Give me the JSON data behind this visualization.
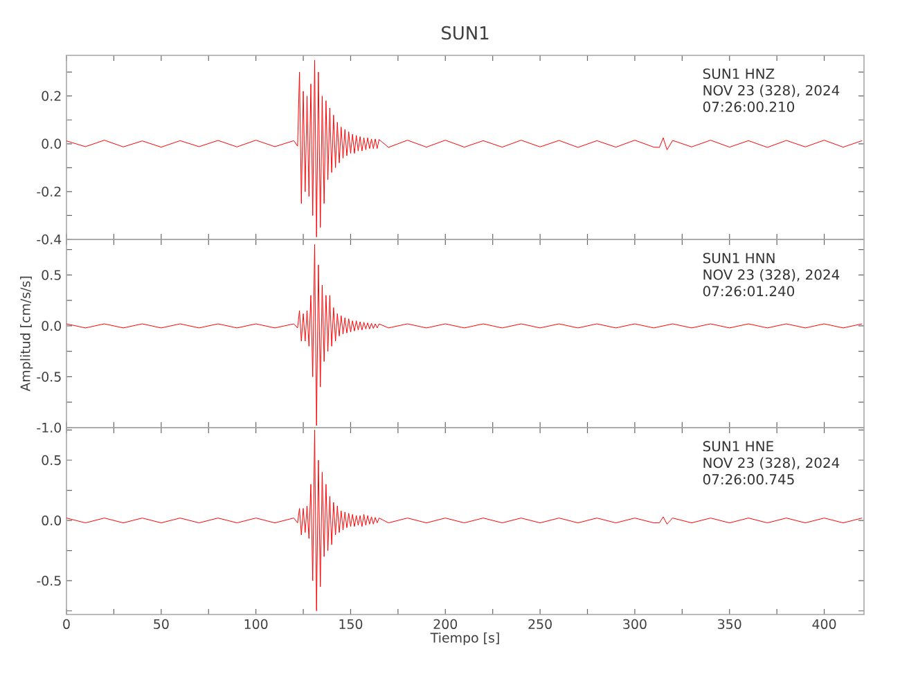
{
  "chart_data": [
    {
      "type": "line",
      "title": "SUN1",
      "annotations": [
        "SUN1   HNZ",
        "NOV 23 (328), 2024",
        "07:26:00.210"
      ],
      "tick_labels": "y",
      "xlim": [
        0,
        421
      ],
      "ylim": [
        -0.4,
        0.37
      ],
      "xticks": [
        0,
        {
          "value": 25,
          "label": null
        },
        50,
        {
          "value": 75,
          "label": null
        },
        100,
        {
          "value": 125,
          "label": null
        },
        150,
        {
          "value": 175,
          "label": null
        },
        200,
        {
          "value": 225,
          "label": null
        },
        250,
        {
          "value": 275,
          "label": null
        },
        300,
        {
          "value": 325,
          "label": null
        },
        350,
        {
          "value": 375,
          "label": null
        },
        400
      ],
      "yticks": [
        -0.4,
        {
          "value": -0.3,
          "label": null
        },
        -0.2,
        {
          "value": -0.1,
          "label": null
        },
        {
          "value": 0,
          "label": "0.0"
        },
        {
          "value": 0.1,
          "label": null
        },
        0.2,
        {
          "value": 0.3,
          "label": null
        }
      ],
      "series": [
        {
          "color": "#ff0000",
          "x": [
            0,
            10,
            20,
            30,
            40,
            50,
            60,
            70,
            80,
            90,
            100,
            110,
            120,
            122,
            123,
            124,
            125,
            126,
            127,
            128,
            129,
            130,
            131,
            132,
            133,
            134,
            135,
            136,
            137,
            138,
            139,
            140,
            141,
            142,
            143,
            144,
            145,
            146,
            147,
            148,
            149,
            150,
            151,
            152,
            153,
            154,
            155,
            156,
            157,
            158,
            159,
            160,
            161,
            162,
            163,
            164,
            165,
            170,
            180,
            190,
            200,
            210,
            220,
            230,
            240,
            250,
            260,
            270,
            280,
            290,
            300,
            310,
            313,
            315,
            317,
            320,
            330,
            340,
            350,
            360,
            370,
            380,
            390,
            400,
            410,
            420
          ],
          "values": [
            0.012,
            -0.012,
            0.015,
            -0.013,
            0.012,
            -0.014,
            0.013,
            -0.012,
            0.014,
            -0.013,
            0.015,
            -0.012,
            0.013,
            -0.01,
            0.3,
            -0.25,
            0.22,
            -0.2,
            0.2,
            -0.22,
            0.25,
            -0.3,
            0.35,
            -0.39,
            0.3,
            -0.35,
            0.2,
            -0.25,
            0.18,
            -0.15,
            0.15,
            -0.12,
            0.12,
            -0.1,
            0.09,
            -0.08,
            0.07,
            -0.06,
            0.06,
            -0.05,
            0.05,
            -0.04,
            0.04,
            -0.04,
            0.035,
            -0.03,
            0.03,
            -0.03,
            0.025,
            -0.025,
            0.025,
            -0.02,
            0.02,
            -0.02,
            0.02,
            -0.02,
            0.018,
            -0.015,
            0.015,
            -0.014,
            0.015,
            -0.014,
            0.013,
            -0.014,
            0.015,
            -0.013,
            0.014,
            -0.015,
            0.013,
            -0.014,
            0.015,
            -0.014,
            -0.015,
            0.025,
            -0.025,
            0.014,
            -0.013,
            0.015,
            -0.014,
            0.013,
            -0.015,
            0.014,
            -0.013,
            0.015,
            -0.014,
            0.013
          ]
        }
      ]
    },
    {
      "type": "line",
      "ylabel": "Amplitud [cm/s/s]",
      "annotations": [
        "SUN1   HNN",
        "NOV 23 (328), 2024",
        "07:26:01.240"
      ],
      "tick_labels": "y",
      "xlim": [
        0,
        421
      ],
      "ylim": [
        -1.0,
        0.85
      ],
      "xticks": [
        0,
        {
          "value": 25,
          "label": null
        },
        50,
        {
          "value": 75,
          "label": null
        },
        100,
        {
          "value": 125,
          "label": null
        },
        150,
        {
          "value": 175,
          "label": null
        },
        200,
        {
          "value": 225,
          "label": null
        },
        250,
        {
          "value": 275,
          "label": null
        },
        300,
        {
          "value": 325,
          "label": null
        },
        350,
        {
          "value": 375,
          "label": null
        },
        400
      ],
      "yticks": [
        {
          "value": -1.0,
          "label": "-1.0"
        },
        {
          "value": -0.75,
          "label": null
        },
        -0.5,
        {
          "value": -0.25,
          "label": null
        },
        {
          "value": 0,
          "label": "0.0"
        },
        {
          "value": 0.25,
          "label": null
        },
        0.5,
        {
          "value": 0.75,
          "label": null
        }
      ],
      "series": [
        {
          "color": "#ff0000",
          "x": [
            0,
            10,
            20,
            30,
            40,
            50,
            60,
            70,
            80,
            90,
            100,
            110,
            120,
            122,
            123,
            124,
            125,
            126,
            127,
            128,
            129,
            130,
            131,
            132,
            133,
            134,
            135,
            136,
            137,
            138,
            139,
            140,
            141,
            142,
            143,
            144,
            145,
            146,
            147,
            148,
            149,
            150,
            151,
            152,
            153,
            154,
            155,
            156,
            157,
            158,
            159,
            160,
            161,
            162,
            163,
            164,
            165,
            170,
            180,
            190,
            200,
            210,
            220,
            230,
            240,
            250,
            260,
            270,
            280,
            290,
            300,
            310,
            320,
            330,
            340,
            350,
            360,
            370,
            380,
            390,
            400,
            410,
            420
          ],
          "values": [
            0.02,
            -0.02,
            0.02,
            -0.02,
            0.02,
            -0.02,
            0.02,
            -0.02,
            0.02,
            -0.02,
            0.02,
            -0.02,
            0.02,
            -0.02,
            0.15,
            -0.15,
            0.12,
            -0.15,
            0.15,
            -0.2,
            0.3,
            -0.5,
            0.8,
            -0.98,
            0.6,
            -0.6,
            0.4,
            -0.35,
            0.3,
            -0.25,
            0.3,
            -0.2,
            0.18,
            -0.15,
            0.12,
            -0.1,
            0.1,
            -0.08,
            0.08,
            -0.07,
            0.07,
            -0.06,
            0.05,
            -0.05,
            0.05,
            -0.04,
            0.04,
            -0.04,
            0.035,
            -0.03,
            0.03,
            -0.03,
            0.025,
            -0.025,
            0.02,
            -0.02,
            0.02,
            -0.02,
            0.02,
            -0.02,
            0.02,
            -0.02,
            0.02,
            -0.02,
            0.02,
            -0.02,
            0.02,
            -0.02,
            0.02,
            -0.02,
            0.02,
            -0.02,
            0.02,
            -0.02,
            0.02,
            -0.02,
            0.02,
            -0.02,
            0.02,
            -0.02,
            0.02,
            -0.02,
            0.02
          ]
        }
      ]
    },
    {
      "type": "line",
      "xlabel": "Tiempo [s]",
      "annotations": [
        "SUN1   HNE",
        "NOV 23 (328), 2024",
        "07:26:00.745"
      ],
      "xlim": [
        0,
        421
      ],
      "ylim": [
        -0.78,
        0.77
      ],
      "xticks": [
        0,
        {
          "value": 25,
          "label": null
        },
        50,
        {
          "value": 75,
          "label": null
        },
        100,
        {
          "value": 125,
          "label": null
        },
        150,
        {
          "value": 175,
          "label": null
        },
        200,
        {
          "value": 225,
          "label": null
        },
        250,
        {
          "value": 275,
          "label": null
        },
        300,
        {
          "value": 325,
          "label": null
        },
        350,
        {
          "value": 375,
          "label": null
        },
        400
      ],
      "yticks": [
        {
          "value": -0.75,
          "label": null
        },
        -0.5,
        {
          "value": -0.25,
          "label": null
        },
        {
          "value": 0,
          "label": "0.0"
        },
        {
          "value": 0.25,
          "label": null
        },
        0.5,
        {
          "value": 0.75,
          "label": null
        }
      ],
      "series": [
        {
          "color": "#ff0000",
          "x": [
            0,
            10,
            20,
            30,
            40,
            50,
            60,
            70,
            80,
            90,
            100,
            110,
            120,
            122,
            123,
            124,
            125,
            126,
            127,
            128,
            129,
            130,
            131,
            132,
            133,
            134,
            135,
            136,
            137,
            138,
            139,
            140,
            141,
            142,
            143,
            144,
            145,
            146,
            147,
            148,
            149,
            150,
            151,
            152,
            153,
            154,
            155,
            156,
            157,
            158,
            159,
            160,
            161,
            162,
            163,
            164,
            165,
            170,
            180,
            190,
            200,
            210,
            220,
            230,
            240,
            250,
            260,
            270,
            280,
            290,
            300,
            310,
            313,
            315,
            317,
            320,
            330,
            340,
            350,
            360,
            370,
            380,
            390,
            400,
            410,
            420
          ],
          "values": [
            0.02,
            -0.02,
            0.02,
            -0.02,
            0.02,
            -0.02,
            0.02,
            -0.02,
            0.02,
            -0.02,
            0.02,
            -0.02,
            0.02,
            -0.02,
            0.1,
            -0.12,
            0.1,
            -0.1,
            0.12,
            -0.15,
            0.3,
            -0.5,
            0.75,
            -0.75,
            0.5,
            -0.55,
            0.4,
            -0.3,
            0.3,
            -0.25,
            0.2,
            -0.2,
            0.15,
            -0.12,
            0.12,
            -0.1,
            0.08,
            -0.08,
            0.07,
            -0.06,
            0.06,
            -0.05,
            0.05,
            -0.05,
            0.04,
            -0.04,
            0.04,
            -0.05,
            0.05,
            -0.04,
            0.04,
            -0.03,
            0.03,
            -0.03,
            0.025,
            -0.02,
            0.02,
            -0.02,
            0.02,
            -0.02,
            0.02,
            -0.02,
            0.02,
            -0.02,
            0.02,
            -0.02,
            0.02,
            -0.02,
            0.02,
            -0.02,
            0.02,
            -0.02,
            -0.02,
            0.03,
            -0.03,
            0.02,
            -0.02,
            0.02,
            -0.02,
            0.02,
            -0.02,
            0.02,
            -0.02,
            0.02,
            -0.02,
            0.02
          ]
        }
      ]
    }
  ]
}
